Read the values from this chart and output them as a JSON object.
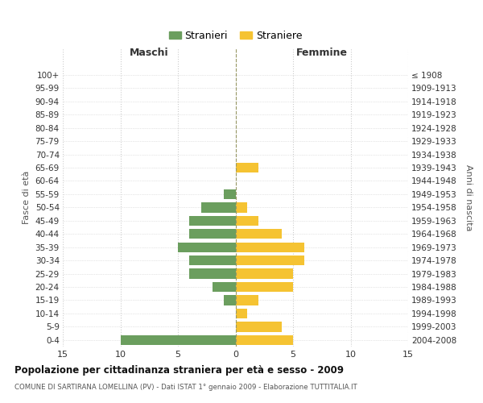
{
  "age_groups": [
    "0-4",
    "5-9",
    "10-14",
    "15-19",
    "20-24",
    "25-29",
    "30-34",
    "35-39",
    "40-44",
    "45-49",
    "50-54",
    "55-59",
    "60-64",
    "65-69",
    "70-74",
    "75-79",
    "80-84",
    "85-89",
    "90-94",
    "95-99",
    "100+"
  ],
  "birth_years": [
    "2004-2008",
    "1999-2003",
    "1994-1998",
    "1989-1993",
    "1984-1988",
    "1979-1983",
    "1974-1978",
    "1969-1973",
    "1964-1968",
    "1959-1963",
    "1954-1958",
    "1949-1953",
    "1944-1948",
    "1939-1943",
    "1934-1938",
    "1929-1933",
    "1924-1928",
    "1919-1923",
    "1914-1918",
    "1909-1913",
    "≤ 1908"
  ],
  "males": [
    10,
    0,
    0,
    1,
    2,
    4,
    4,
    5,
    4,
    4,
    3,
    1,
    0,
    0,
    0,
    0,
    0,
    0,
    0,
    0,
    0
  ],
  "females": [
    5,
    4,
    1,
    2,
    5,
    5,
    6,
    6,
    4,
    2,
    1,
    0,
    0,
    2,
    0,
    0,
    0,
    0,
    0,
    0,
    0
  ],
  "male_color": "#6b9e5e",
  "female_color": "#f5c332",
  "background_color": "#ffffff",
  "grid_color": "#cccccc",
  "grid_color_dotted": "#bbbbbb",
  "title": "Popolazione per cittadinanza straniera per età e sesso - 2009",
  "subtitle": "COMUNE DI SARTIRANA LOMELLINA (PV) - Dati ISTAT 1° gennaio 2009 - Elaborazione TUTTITALIA.IT",
  "ylabel_left": "Fasce di età",
  "ylabel_right": "Anni di nascita",
  "xlabel_left": "Maschi",
  "xlabel_top_right": "Femmine",
  "legend_stranieri": "Stranieri",
  "legend_straniere": "Straniere",
  "xlim": 15
}
